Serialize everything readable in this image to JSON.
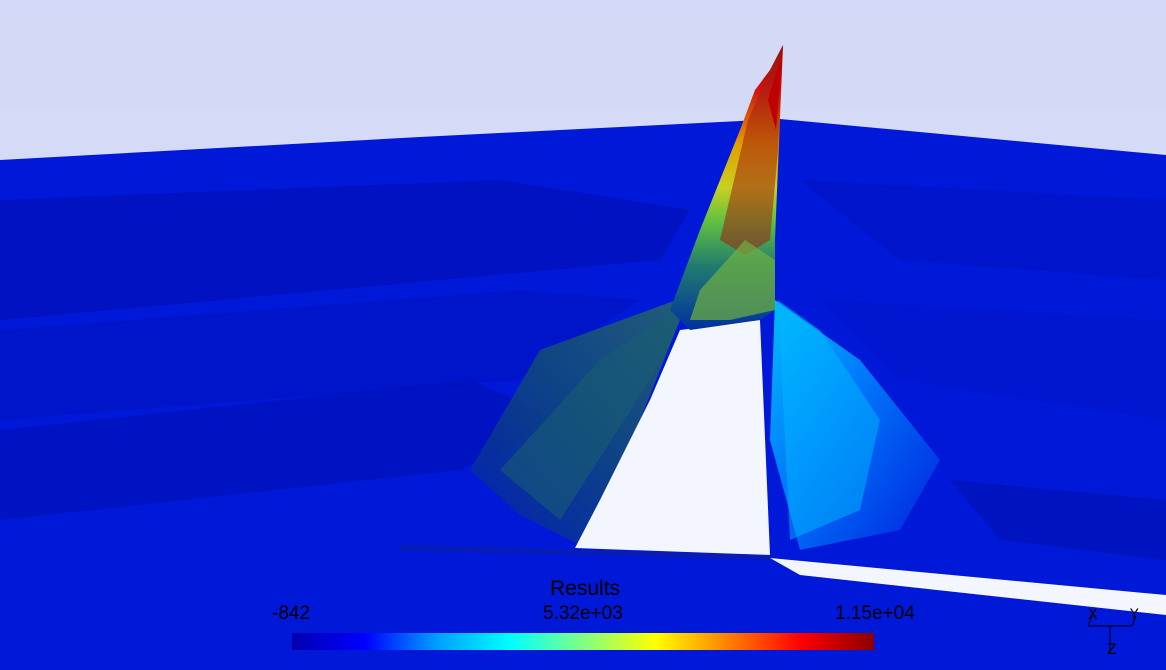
{
  "legend": {
    "title": "Results",
    "min_label": "-842",
    "mid_label": "5.32e+03",
    "max_label": "1.15e+04",
    "colormap": [
      "#0000b0",
      "#0000ff",
      "#00a0ff",
      "#00ffff",
      "#80ff80",
      "#ffff00",
      "#ff8000",
      "#ff0000",
      "#8b0000"
    ]
  },
  "axes": {
    "x_label": "X",
    "y_label": "Y",
    "z_label": "Z"
  },
  "colors": {
    "background": "#d5dbf7",
    "surface_low": "#0018d8",
    "surface_deep": "#000fa8",
    "peak_high": "#8b0000"
  }
}
